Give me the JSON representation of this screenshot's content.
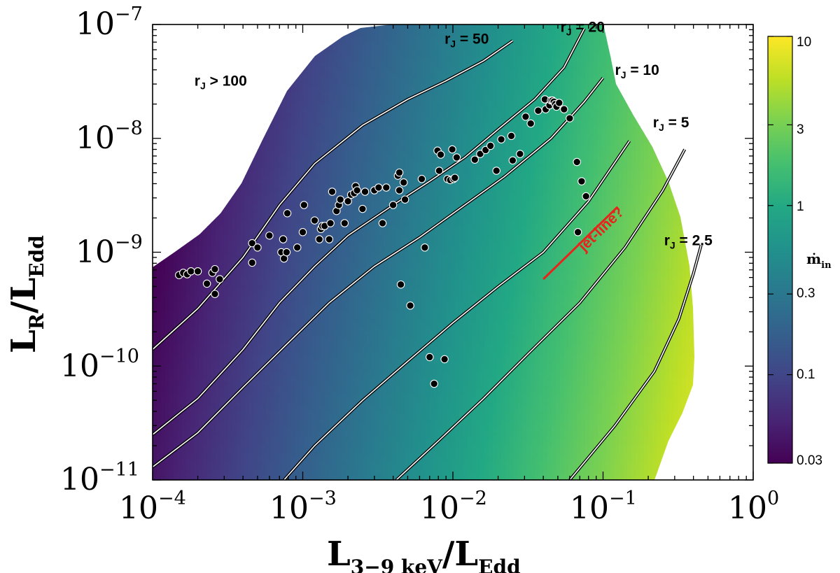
{
  "chart_data": {
    "type": "scatter",
    "xscale": "log",
    "yscale": "log",
    "xlim": [
      0.0001,
      1
    ],
    "ylim": [
      1e-11,
      1e-07
    ],
    "xlabel": "L3−9 keV/LEdd",
    "xlabel_main": "L",
    "xlabel_sub": "3−9 keV",
    "xlabel_rest": "/L",
    "xlabel_sub2": "Edd",
    "ylabel": "LR/LEdd",
    "ylabel_main": "L",
    "ylabel_sub": "R",
    "ylabel_rest": "/L",
    "ylabel_sub2": "Edd",
    "x_ticks": [
      {
        "base": "10",
        "exp": "−4",
        "value": 0.0001
      },
      {
        "base": "10",
        "exp": "−3",
        "value": 0.001
      },
      {
        "base": "10",
        "exp": "−2",
        "value": 0.01
      },
      {
        "base": "10",
        "exp": "−1",
        "value": 0.1
      },
      {
        "base": "10",
        "exp": "0",
        "value": 1
      }
    ],
    "y_ticks": [
      {
        "base": "10",
        "exp": "−7",
        "value": 1e-07
      },
      {
        "base": "10",
        "exp": "−8",
        "value": 1e-08
      },
      {
        "base": "10",
        "exp": "−9",
        "value": 1e-09
      },
      {
        "base": "10",
        "exp": "−10",
        "value": 1e-10
      },
      {
        "base": "10",
        "exp": "−11",
        "value": 1e-11
      }
    ],
    "colorbar": {
      "label": "ṁin",
      "label_main": "ṁ",
      "label_sub": "in",
      "scale": "log",
      "range": [
        0.03,
        10
      ],
      "ticks": [
        "10",
        "3",
        "1",
        "0.3",
        "0.1",
        "0.03"
      ],
      "tick_values": [
        10,
        3,
        1,
        0.3,
        0.1,
        0.03
      ],
      "colormap": "viridis"
    },
    "contours": [
      {
        "label": "rJ > 100",
        "label_main": "r",
        "label_sub": "J",
        "label_rest": " > 100",
        "label_at": [
          0.00019,
          2.9e-08
        ],
        "points": [
          [
            0.0001,
            1.4e-10
          ],
          [
            0.0002,
            3.2e-10
          ],
          [
            0.0004,
            9e-10
          ],
          [
            0.0007,
            2.6e-09
          ],
          [
            0.0012,
            6e-09
          ],
          [
            0.0025,
            1.3e-08
          ],
          [
            0.005,
            2.2e-08
          ],
          [
            0.009,
            3.2e-08
          ],
          [
            0.016,
            4.8e-08
          ],
          [
            0.025,
            7.2e-08
          ]
        ]
      },
      {
        "label": "rJ = 50",
        "label_main": "r",
        "label_sub": "J",
        "label_rest": " = 50",
        "label_at": [
          0.0088,
          6.8e-08
        ],
        "points": [
          [
            0.0001,
            2.5e-11
          ],
          [
            0.0002,
            5.2e-11
          ],
          [
            0.0004,
            1.4e-10
          ],
          [
            0.0007,
            3.6e-10
          ],
          [
            0.0012,
            7.5e-10
          ],
          [
            0.002,
            1.4e-09
          ],
          [
            0.004,
            2.6e-09
          ],
          [
            0.007,
            4.2e-09
          ],
          [
            0.012,
            6.8e-09
          ],
          [
            0.02,
            1.2e-08
          ],
          [
            0.035,
            2.2e-08
          ],
          [
            0.055,
            4.2e-08
          ],
          [
            0.075,
            9.2e-08
          ]
        ]
      },
      {
        "label": "rJ = 20",
        "label_main": "r",
        "label_sub": "J",
        "label_rest": " = 20",
        "label_at": [
          0.052,
          8.6e-08
        ],
        "points": [
          [
            0.0001,
            1.3e-11
          ],
          [
            0.0002,
            2.6e-11
          ],
          [
            0.0004,
            6.5e-11
          ],
          [
            0.0008,
            1.6e-10
          ],
          [
            0.0015,
            3.6e-10
          ],
          [
            0.003,
            7.5e-10
          ],
          [
            0.006,
            1.35e-09
          ],
          [
            0.012,
            2.6e-09
          ],
          [
            0.022,
            4.6e-09
          ],
          [
            0.045,
            1e-08
          ],
          [
            0.075,
            2.1e-08
          ],
          [
            0.1,
            3.4e-08
          ]
        ]
      },
      {
        "label": "rJ = 10",
        "label_main": "r",
        "label_sub": "J",
        "label_rest": " = 10",
        "label_at": [
          0.12,
          3.6e-08
        ],
        "points": [
          [
            0.00075,
            1e-11
          ],
          [
            0.0012,
            2e-11
          ],
          [
            0.0025,
            5e-11
          ],
          [
            0.005,
            1.1e-10
          ],
          [
            0.01,
            2.4e-10
          ],
          [
            0.02,
            5e-10
          ],
          [
            0.04,
            1e-09
          ],
          [
            0.08,
            2.8e-09
          ],
          [
            0.15,
            9.5e-09
          ]
        ]
      },
      {
        "label": "rJ = 5",
        "label_main": "r",
        "label_sub": "J",
        "label_rest": " = 5",
        "label_at": [
          0.215,
          1.25e-08
        ],
        "points": [
          [
            0.0042,
            1e-11
          ],
          [
            0.008,
            2.2e-11
          ],
          [
            0.016,
            5.2e-11
          ],
          [
            0.032,
            1.3e-10
          ],
          [
            0.07,
            3.6e-10
          ],
          [
            0.14,
            1.1e-09
          ],
          [
            0.25,
            3.5e-09
          ],
          [
            0.35,
            8e-09
          ]
        ]
      },
      {
        "label": "rJ = 2.5",
        "label_main": "r",
        "label_sub": "J",
        "label_rest": " = 2.5",
        "label_at": [
          0.255,
          1.15e-09
        ],
        "points": [
          [
            0.06,
            1e-11
          ],
          [
            0.12,
            3e-11
          ],
          [
            0.22,
            9e-11
          ],
          [
            0.32,
            2.6e-10
          ],
          [
            0.4,
            6.5e-10
          ],
          [
            0.45,
            1.15e-09
          ]
        ]
      }
    ],
    "annotation": {
      "text": "jet-line?",
      "color": "#e8231a",
      "line_x": [
        0.04,
        0.125
      ],
      "line_y": [
        5.8e-10,
        2.5e-09
      ],
      "text_at": [
        0.075,
        1e-09
      ]
    },
    "points": [
      [
        0.00015,
        6.3e-10
      ],
      [
        0.00016,
        6.6e-10
      ],
      [
        0.00017,
        6.4e-10
      ],
      [
        0.00018,
        6.8e-10
      ],
      [
        0.0002,
        6.8e-10
      ],
      [
        0.00023,
        5.3e-10
      ],
      [
        0.00025,
        6.6e-10
      ],
      [
        0.00026,
        7.1e-10
      ],
      [
        0.00026,
        4.3e-10
      ],
      [
        0.00028,
        5.8e-10
      ],
      [
        0.00046,
        8.1e-10
      ],
      [
        0.00046,
        1.2e-09
      ],
      [
        0.0005,
        1.1e-09
      ],
      [
        0.0006,
        1.4e-09
      ],
      [
        0.00072,
        1e-09
      ],
      [
        0.00074,
        1.3e-09
      ],
      [
        0.00075,
        8.8e-10
      ],
      [
        0.00078,
        1e-09
      ],
      [
        0.00079,
        2.2e-09
      ],
      [
        0.00092,
        1.1e-09
      ],
      [
        0.001,
        1.5e-09
      ],
      [
        0.00102,
        2.6e-09
      ],
      [
        0.0012,
        1.9e-09
      ],
      [
        0.00129,
        1.3e-09
      ],
      [
        0.00132,
        1.6e-09
      ],
      [
        0.00135,
        1.7e-09
      ],
      [
        0.0014,
        1.7e-09
      ],
      [
        0.0015,
        1.3e-09
      ],
      [
        0.00153,
        1.8e-09
      ],
      [
        0.00157,
        3.4e-09
      ],
      [
        0.00168,
        2.3e-09
      ],
      [
        0.00174,
        2.6e-09
      ],
      [
        0.00178,
        2.9e-09
      ],
      [
        0.0019,
        1.8e-09
      ],
      [
        0.002,
        2.8e-09
      ],
      [
        0.0021,
        3.2e-09
      ],
      [
        0.0022,
        3.3e-09
      ],
      [
        0.00225,
        3.8e-09
      ],
      [
        0.0023,
        3.5e-09
      ],
      [
        0.0025,
        2.4e-09
      ],
      [
        0.0026,
        3.4e-09
      ],
      [
        0.003,
        3.5e-09
      ],
      [
        0.0032,
        3.7e-09
      ],
      [
        0.0034,
        1.8e-09
      ],
      [
        0.0036,
        3.7e-09
      ],
      [
        0.004,
        2.6e-09
      ],
      [
        0.0043,
        4.7e-09
      ],
      [
        0.0044,
        3.5e-09
      ],
      [
        0.0044,
        5e-09
      ],
      [
        0.0047,
        4.1e-09
      ],
      [
        0.0045,
        5.2e-10
      ],
      [
        0.0048,
        2.9e-09
      ],
      [
        0.0052,
        3.4e-10
      ],
      [
        0.0062,
        4.4e-09
      ],
      [
        0.0065,
        1.1e-09
      ],
      [
        0.007,
        1.2e-10
      ],
      [
        0.0075,
        7e-11
      ],
      [
        0.0079,
        7.8e-09
      ],
      [
        0.0081,
        5.2e-09
      ],
      [
        0.0083,
        7.2e-09
      ],
      [
        0.0088,
        1.15e-10
      ],
      [
        0.0092,
        4.4e-09
      ],
      [
        0.0096,
        4.3e-09
      ],
      [
        0.0099,
        8e-09
      ],
      [
        0.0101,
        4.4e-09
      ],
      [
        0.0103,
        4.5e-09
      ],
      [
        0.0106,
        6.8e-09
      ],
      [
        0.014,
        6.5e-09
      ],
      [
        0.0152,
        7.3e-09
      ],
      [
        0.0165,
        7.9e-09
      ],
      [
        0.0178,
        8.6e-09
      ],
      [
        0.0195,
        5.2e-09
      ],
      [
        0.021,
        9.8e-09
      ],
      [
        0.0245,
        1.05e-08
      ],
      [
        0.025,
        6.4e-09
      ],
      [
        0.028,
        7.3e-09
      ],
      [
        0.0305,
        1.55e-08
      ],
      [
        0.033,
        1.35e-08
      ],
      [
        0.037,
        1.75e-08
      ],
      [
        0.041,
        2.2e-08
      ],
      [
        0.0415,
        1.8e-08
      ],
      [
        0.044,
        1.95e-08
      ],
      [
        0.045,
        2.15e-08
      ],
      [
        0.046,
        2.15e-08
      ],
      [
        0.047,
        2.1e-08
      ],
      [
        0.048,
        2e-08
      ],
      [
        0.049,
        1.9e-08
      ],
      [
        0.051,
        2.05e-08
      ],
      [
        0.055,
        1.8e-08
      ],
      [
        0.06,
        1.5e-08
      ],
      [
        0.067,
        6.2e-09
      ],
      [
        0.068,
        1.5e-09
      ],
      [
        0.072,
        4.2e-09
      ],
      [
        0.077,
        3.1e-09
      ]
    ]
  }
}
